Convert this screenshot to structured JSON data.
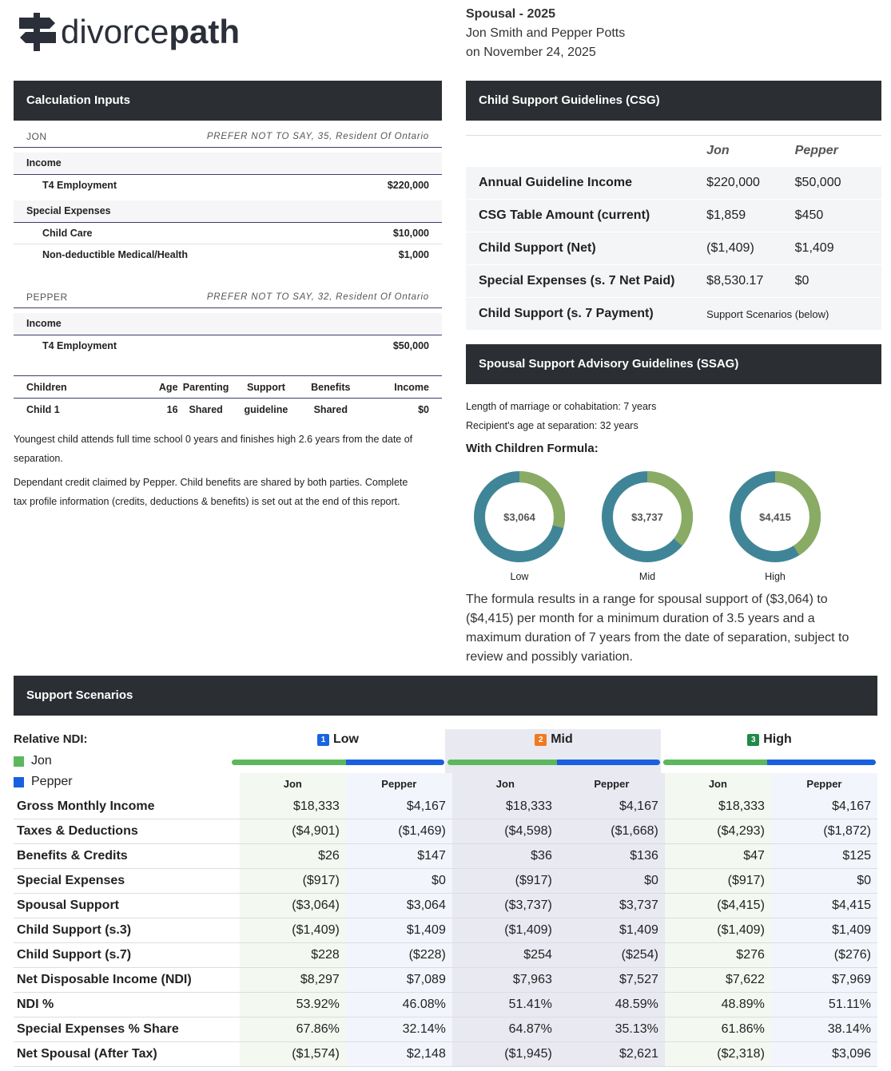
{
  "header": {
    "brand_plain": "divorce",
    "brand_bold": "path",
    "title": "Spousal - 2025",
    "parties": "Jon Smith and Pepper Potts",
    "date": "on November 24, 2025"
  },
  "inputs": {
    "title": "Calculation Inputs",
    "people": [
      {
        "name": "JON",
        "profile": "PREFER NOT TO SAY, 35, Resident Of Ontario",
        "groups": [
          {
            "label": "Income",
            "items": [
              [
                "T4 Employment",
                "$220,000"
              ]
            ]
          },
          {
            "label": "Special Expenses",
            "items": [
              [
                "Child Care",
                "$10,000"
              ],
              [
                "Non-deductible Medical/Health",
                "$1,000"
              ]
            ]
          }
        ]
      },
      {
        "name": "PEPPER",
        "profile": "PREFER NOT TO SAY, 32, Resident Of Ontario",
        "groups": [
          {
            "label": "Income",
            "items": [
              [
                "T4 Employment",
                "$50,000"
              ]
            ]
          }
        ]
      }
    ],
    "children": {
      "header": [
        "Children",
        "Age",
        "Parenting",
        "Support",
        "Benefits",
        "Income"
      ],
      "rows": [
        [
          "Child 1",
          "16",
          "Shared",
          "guideline",
          "Shared",
          "$0"
        ]
      ]
    },
    "notes": [
      "Youngest child attends full time school 0 years and finishes high 2.6 years from the date of separation.",
      "Dependant credit claimed by Pepper. Child benefits are shared by both parties. Complete tax profile information (credits, deductions & benefits) is set out at the end of this report."
    ]
  },
  "csg": {
    "title": "Child Support Guidelines (CSG)",
    "columns": [
      "Jon",
      "Pepper"
    ],
    "rows": [
      [
        "Annual Guideline Income",
        "$220,000",
        "$50,000"
      ],
      [
        "CSG Table Amount (current)",
        "$1,859",
        "$450"
      ],
      [
        "Child Support (Net)",
        "($1,409)",
        "$1,409"
      ],
      [
        "Special Expenses (s. 7 Net Paid)",
        "$8,530.17",
        "$0"
      ],
      [
        "Child Support (s. 7 Payment)",
        "Support Scenarios (below)"
      ]
    ]
  },
  "ssag": {
    "title": "Spousal Support Advisory Guidelines (SSAG)",
    "lines": [
      "Length of marriage or cohabitation: 7 years",
      "Recipient's age at separation: 32 years"
    ],
    "formula_title": "With Children Formula:",
    "donuts": [
      {
        "amount": "$3,064",
        "label": "Low",
        "share": 29
      },
      {
        "amount": "$3,737",
        "label": "Mid",
        "share": 36
      },
      {
        "amount": "$4,415",
        "label": "High",
        "share": 41
      }
    ],
    "summary": "The formula results in a range for spousal support of ($3,064) to ($4,415) per month for a minimum duration of 3.5 years and a maximum duration of 7 years from the date of separation, subject to review and possibly variation."
  },
  "scenarios": {
    "title": "Support Scenarios",
    "relative_ndi": "Relative NDI:",
    "legend": [
      {
        "name": "Jon",
        "color": "#5cb85c"
      },
      {
        "name": "Pepper",
        "color": "#1a5fe0"
      }
    ],
    "scenarios": [
      {
        "number": "1",
        "name": "Low",
        "color": "#1a64e0"
      },
      {
        "number": "2",
        "name": "Mid",
        "color": "#f07a22"
      },
      {
        "number": "3",
        "name": "High",
        "color": "#1f8a4a"
      }
    ],
    "ndi_jon_share": [
      53.92,
      51.41,
      48.89
    ],
    "columns": [
      "Jon",
      "Pepper"
    ],
    "rows": [
      [
        "Gross Monthly Income",
        "$18,333",
        "$4,167",
        "$18,333",
        "$4,167",
        "$18,333",
        "$4,167"
      ],
      [
        "Taxes & Deductions",
        "($4,901)",
        "($1,469)",
        "($4,598)",
        "($1,668)",
        "($4,293)",
        "($1,872)"
      ],
      [
        "Benefits & Credits",
        "$26",
        "$147",
        "$36",
        "$136",
        "$47",
        "$125"
      ],
      [
        "Special Expenses",
        "($917)",
        "$0",
        "($917)",
        "$0",
        "($917)",
        "$0"
      ],
      [
        "Spousal Support",
        "($3,064)",
        "$3,064",
        "($3,737)",
        "$3,737",
        "($4,415)",
        "$4,415"
      ],
      [
        "Child Support (s.3)",
        "($1,409)",
        "$1,409",
        "($1,409)",
        "$1,409",
        "($1,409)",
        "$1,409"
      ],
      [
        "Child Support (s.7)",
        "$228",
        "($228)",
        "$254",
        "($254)",
        "$276",
        "($276)"
      ],
      [
        "Net Disposable Income (NDI)",
        "$8,297",
        "$7,089",
        "$7,963",
        "$7,527",
        "$7,622",
        "$7,969"
      ],
      [
        "NDI %",
        "53.92%",
        "46.08%",
        "51.41%",
        "48.59%",
        "48.89%",
        "51.11%"
      ],
      [
        "Special Expenses % Share",
        "67.86%",
        "32.14%",
        "64.87%",
        "35.13%",
        "61.86%",
        "38.14%"
      ],
      [
        "Net Spousal (After Tax)",
        "($1,574)",
        "$2,148",
        "($1,945)",
        "$2,621",
        "($2,318)",
        "$3,096"
      ]
    ]
  }
}
